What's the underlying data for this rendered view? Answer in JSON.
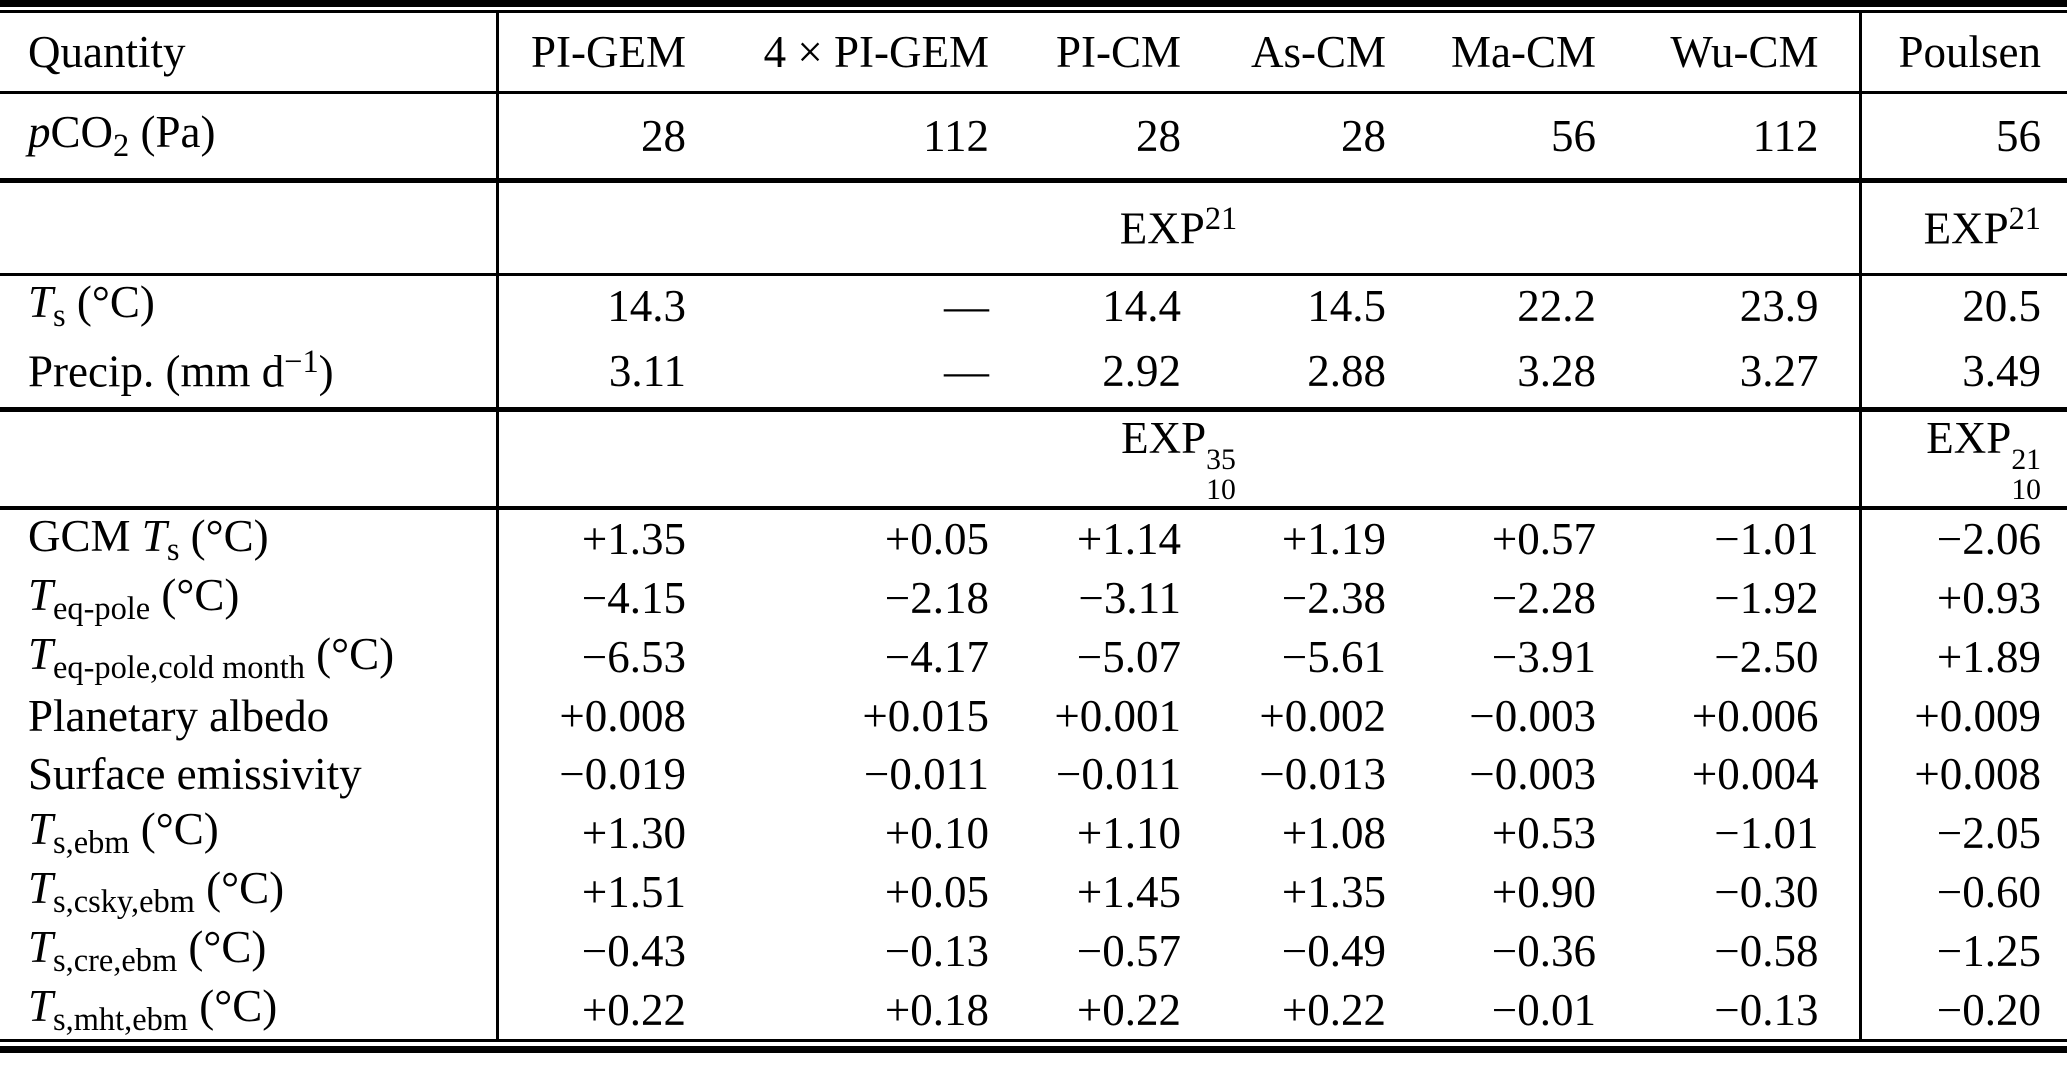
{
  "table": {
    "column_headers": [
      "Quantity",
      "PI-GEM",
      "4 × PI-GEM",
      "PI-CM",
      "As-CM",
      "Ma-CM",
      "Wu-CM",
      "Poulsen"
    ],
    "pco2_row": {
      "label": [
        {
          "text": "p",
          "style": "i"
        },
        {
          "text": "CO"
        },
        {
          "text": "2",
          "style": "sub"
        },
        {
          "text": " (Pa)"
        }
      ],
      "values": [
        "28",
        "112",
        "28",
        "28",
        "56",
        "112",
        "56"
      ]
    },
    "section1": {
      "title": [
        {
          "text": "EXP"
        },
        {
          "text": "21",
          "style": "sup"
        }
      ],
      "poulsen_title": [
        {
          "text": "EXP"
        },
        {
          "text": "21",
          "style": "sup"
        }
      ],
      "rows": [
        {
          "label": [
            {
              "text": "T",
              "style": "i"
            },
            {
              "text": "s",
              "style": "sub"
            },
            {
              "text": " (°C)"
            }
          ],
          "values": [
            "14.3",
            "—",
            "14.4",
            "14.5",
            "22.2",
            "23.9",
            "20.5"
          ]
        },
        {
          "label": [
            {
              "text": "Precip. (mm d"
            },
            {
              "text": "−1",
              "style": "sup"
            },
            {
              "text": ")"
            }
          ],
          "values": [
            "3.11",
            "—",
            "2.92",
            "2.88",
            "3.28",
            "3.27",
            "3.49"
          ]
        }
      ]
    },
    "section2": {
      "title": [
        {
          "text": "EXP"
        },
        {
          "style": "stack",
          "sup": "35",
          "sub": "10"
        }
      ],
      "poulsen_title": [
        {
          "text": "EXP"
        },
        {
          "style": "stack",
          "sup": "21",
          "sub": "10"
        }
      ],
      "rows": [
        {
          "label": [
            {
              "text": "GCM "
            },
            {
              "text": "T",
              "style": "i"
            },
            {
              "text": "s",
              "style": "sub"
            },
            {
              "text": " (°C)"
            }
          ],
          "values": [
            "+1.35",
            "+0.05",
            "+1.14",
            "+1.19",
            "+0.57",
            "−1.01",
            "−2.06"
          ]
        },
        {
          "label": [
            {
              "text": "T",
              "style": "i"
            },
            {
              "text": "eq-pole",
              "style": "sub"
            },
            {
              "text": " (°C)"
            }
          ],
          "values": [
            "−4.15",
            "−2.18",
            "−3.11",
            "−2.38",
            "−2.28",
            "−1.92",
            "+0.93"
          ]
        },
        {
          "label": [
            {
              "text": "T",
              "style": "i"
            },
            {
              "text": "eq-pole,cold month",
              "style": "sub"
            },
            {
              "text": " (°C)"
            }
          ],
          "values": [
            "−6.53",
            "−4.17",
            "−5.07",
            "−5.61",
            "−3.91",
            "−2.50",
            "+1.89"
          ]
        },
        {
          "label": [
            {
              "text": "Planetary albedo"
            }
          ],
          "values": [
            "+0.008",
            "+0.015",
            "+0.001",
            "+0.002",
            "−0.003",
            "+0.006",
            "+0.009"
          ]
        },
        {
          "label": [
            {
              "text": "Surface emissivity"
            }
          ],
          "values": [
            "−0.019",
            "−0.011",
            "−0.011",
            "−0.013",
            "−0.003",
            "+0.004",
            "+0.008"
          ]
        },
        {
          "label": [
            {
              "text": "T",
              "style": "i"
            },
            {
              "text": "s,ebm",
              "style": "sub"
            },
            {
              "text": " (°C)"
            }
          ],
          "values": [
            "+1.30",
            "+0.10",
            "+1.10",
            "+1.08",
            "+0.53",
            "−1.01",
            "−2.05"
          ]
        },
        {
          "label": [
            {
              "text": "T",
              "style": "i"
            },
            {
              "text": "s,csky,ebm",
              "style": "sub"
            },
            {
              "text": " (°C)"
            }
          ],
          "values": [
            "+1.51",
            "+0.05",
            "+1.45",
            "+1.35",
            "+0.90",
            "−0.30",
            "−0.60"
          ]
        },
        {
          "label": [
            {
              "text": "T",
              "style": "i"
            },
            {
              "text": "s,cre,ebm",
              "style": "sub"
            },
            {
              "text": " (°C)"
            }
          ],
          "values": [
            "−0.43",
            "−0.13",
            "−0.57",
            "−0.49",
            "−0.36",
            "−0.58",
            "−1.25"
          ]
        },
        {
          "label": [
            {
              "text": "T",
              "style": "i"
            },
            {
              "text": "s,mht,ebm",
              "style": "sub"
            },
            {
              "text": " (°C)"
            }
          ],
          "values": [
            "+0.22",
            "+0.18",
            "+0.22",
            "+0.22",
            "−0.01",
            "−0.13",
            "−0.20"
          ]
        }
      ]
    }
  }
}
